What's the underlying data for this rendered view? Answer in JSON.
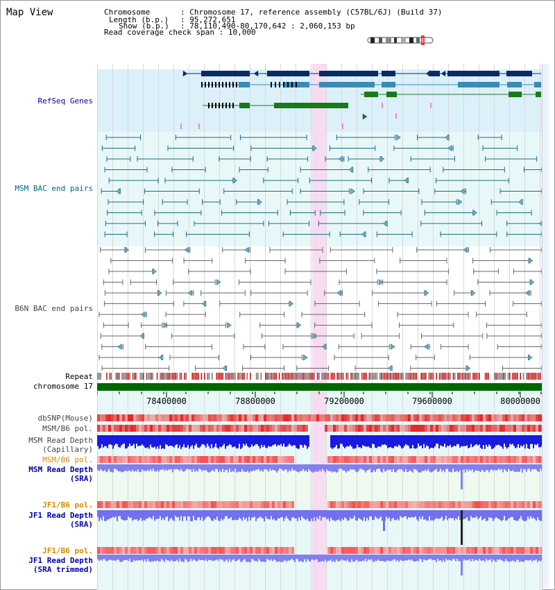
{
  "page": {
    "title": "Map View"
  },
  "header": {
    "chromosome_label": "Chromosome",
    "chromosome_value": "Chromosome 17, reference assembly (C57BL/6J) (Build 37)",
    "length_label": "Length (b.p.)",
    "length_value": "95,272,651",
    "show_label": "Show (b.p.)",
    "show_value": "78,110,490-80,170,642 : 2,060,153 bp",
    "span_label": "Read coverage check span",
    "span_value": "10,000"
  },
  "tracks": {
    "refseq": "RefSeq Genes",
    "msm_bac": "MSM BAC end pairs",
    "b6n_bac": "B6N BAC end pairs",
    "repeat": "Repeat",
    "chromosome": "chromosome 17",
    "dbsnp": "dbSNP(Mouse)",
    "msm_pol1": "MSM/B6 pol.",
    "msm_depth_cap_1": "MSM Read Depth",
    "msm_depth_cap_2": "(Capillary)",
    "msm_pol2": "MSM/B6 pol.",
    "msm_depth_sra_1": "MSM Read Depth",
    "msm_depth_sra_2": "(SRA)",
    "jf1_pol1": "JF1/B6 pol.",
    "jf1_depth_sra_1": "JF1 Read Depth",
    "jf1_depth_sra_2": "(SRA)",
    "jf1_pol2": "JF1/B6 pol.",
    "jf1_depth_trim_1": "JF1 Read Depth",
    "jf1_depth_trim_2": "(SRA trimmed)"
  },
  "ruler": {
    "ticks": [
      "78400000",
      "78800000",
      "79200000",
      "79600000",
      "80000000"
    ]
  },
  "colors": {
    "label_blue": "#0000aa",
    "label_teal": "#006688",
    "label_gray": "#444444",
    "label_orange": "#dd8800",
    "refseq_bg": "#dcf0fa",
    "msm_bg": "#e8f8f8",
    "highlight": "#f8d8f0"
  }
}
